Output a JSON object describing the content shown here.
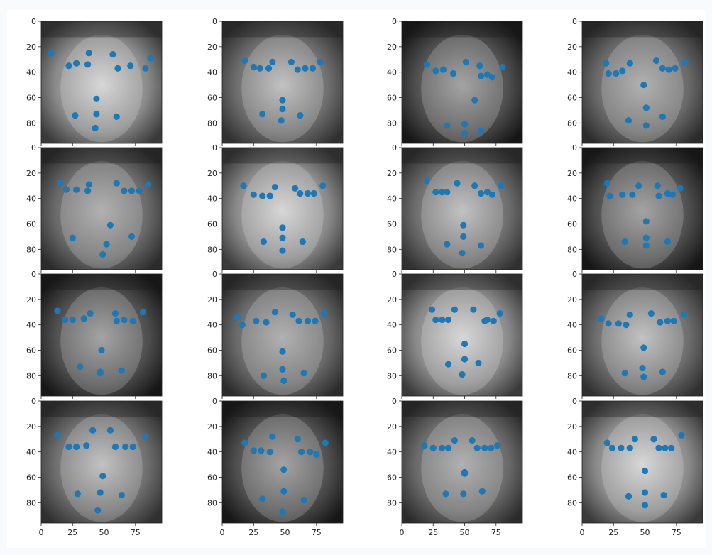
{
  "figure": {
    "background": "#ffffff",
    "page_background": "#f8fafd",
    "rows": 4,
    "cols": 4
  },
  "style": {
    "point_color": "#1f77b4",
    "axis_color": "#222222"
  },
  "axes": {
    "xlim": [
      0,
      96
    ],
    "ylim": [
      96,
      0
    ],
    "yticks": [
      0,
      20,
      40,
      60,
      80
    ],
    "xticks": [
      0,
      25,
      50,
      75
    ],
    "ytick_labels": [
      "0",
      "20",
      "40",
      "60",
      "80"
    ],
    "xtick_labels": [
      "0",
      "25",
      "50",
      "75"
    ]
  },
  "chart_data": [
    {
      "type": "scatter",
      "image": "face-photo",
      "points": [
        [
          8,
          25
        ],
        [
          22,
          35
        ],
        [
          28,
          33
        ],
        [
          37,
          34
        ],
        [
          38,
          25
        ],
        [
          57,
          26
        ],
        [
          61,
          37
        ],
        [
          71,
          35
        ],
        [
          83,
          37
        ],
        [
          87,
          29
        ],
        [
          44,
          61
        ],
        [
          27,
          74
        ],
        [
          44,
          73
        ],
        [
          60,
          75
        ],
        [
          43,
          84
        ]
      ]
    },
    {
      "type": "scatter",
      "image": "face-photo",
      "points": [
        [
          18,
          31
        ],
        [
          25,
          36
        ],
        [
          30,
          37
        ],
        [
          37,
          37
        ],
        [
          40,
          32
        ],
        [
          55,
          32
        ],
        [
          60,
          38
        ],
        [
          66,
          37
        ],
        [
          72,
          37
        ],
        [
          78,
          32
        ],
        [
          48,
          62
        ],
        [
          32,
          73
        ],
        [
          48,
          69
        ],
        [
          62,
          74
        ],
        [
          47,
          78
        ]
      ]
    },
    {
      "type": "scatter",
      "image": "face-photo",
      "points": [
        [
          20,
          34
        ],
        [
          27,
          39
        ],
        [
          33,
          38
        ],
        [
          41,
          41
        ],
        [
          51,
          32
        ],
        [
          62,
          35
        ],
        [
          63,
          43
        ],
        [
          68,
          42
        ],
        [
          72,
          44
        ],
        [
          80,
          36
        ],
        [
          58,
          62
        ],
        [
          36,
          82
        ],
        [
          50,
          81
        ],
        [
          63,
          86
        ],
        [
          50,
          88
        ]
      ]
    },
    {
      "type": "scatter",
      "image": "face-photo",
      "points": [
        [
          19,
          33
        ],
        [
          21,
          41
        ],
        [
          27,
          41
        ],
        [
          32,
          39
        ],
        [
          38,
          33
        ],
        [
          59,
          31
        ],
        [
          64,
          37
        ],
        [
          69,
          38
        ],
        [
          74,
          37
        ],
        [
          82,
          32
        ],
        [
          49,
          50
        ],
        [
          37,
          78
        ],
        [
          51,
          68
        ],
        [
          64,
          75
        ],
        [
          51,
          82
        ]
      ]
    },
    {
      "type": "scatter",
      "image": "face-photo",
      "points": [
        [
          15,
          28
        ],
        [
          20,
          33
        ],
        [
          28,
          33
        ],
        [
          37,
          34
        ],
        [
          38,
          29
        ],
        [
          60,
          28
        ],
        [
          66,
          34
        ],
        [
          72,
          34
        ],
        [
          78,
          34
        ],
        [
          85,
          29
        ],
        [
          55,
          61
        ],
        [
          25,
          71
        ],
        [
          52,
          76
        ],
        [
          72,
          70
        ],
        [
          49,
          84
        ]
      ]
    },
    {
      "type": "scatter",
      "image": "face-photo",
      "points": [
        [
          17,
          30
        ],
        [
          25,
          37
        ],
        [
          32,
          38
        ],
        [
          38,
          38
        ],
        [
          42,
          31
        ],
        [
          58,
          32
        ],
        [
          62,
          36
        ],
        [
          68,
          36
        ],
        [
          73,
          36
        ],
        [
          80,
          30
        ],
        [
          48,
          63
        ],
        [
          33,
          74
        ],
        [
          48,
          71
        ],
        [
          64,
          74
        ],
        [
          48,
          81
        ]
      ]
    },
    {
      "type": "scatter",
      "image": "face-photo",
      "points": [
        [
          20,
          26
        ],
        [
          27,
          35
        ],
        [
          32,
          35
        ],
        [
          36,
          35
        ],
        [
          44,
          28
        ],
        [
          58,
          30
        ],
        [
          63,
          36
        ],
        [
          68,
          35
        ],
        [
          72,
          37
        ],
        [
          79,
          30
        ],
        [
          49,
          61
        ],
        [
          36,
          76
        ],
        [
          49,
          70
        ],
        [
          63,
          77
        ],
        [
          48,
          83
        ]
      ]
    },
    {
      "type": "scatter",
      "image": "face-photo",
      "points": [
        [
          20,
          28
        ],
        [
          22,
          38
        ],
        [
          32,
          37
        ],
        [
          40,
          37
        ],
        [
          45,
          30
        ],
        [
          60,
          30
        ],
        [
          61,
          38
        ],
        [
          68,
          36
        ],
        [
          72,
          37
        ],
        [
          78,
          32
        ],
        [
          51,
          58
        ],
        [
          34,
          74
        ],
        [
          51,
          71
        ],
        [
          68,
          74
        ],
        [
          51,
          77
        ]
      ]
    },
    {
      "type": "scatter",
      "image": "face-photo",
      "points": [
        [
          13,
          29
        ],
        [
          19,
          36
        ],
        [
          25,
          36
        ],
        [
          34,
          35
        ],
        [
          39,
          31
        ],
        [
          59,
          31
        ],
        [
          60,
          37
        ],
        [
          66,
          36
        ],
        [
          73,
          37
        ],
        [
          81,
          30
        ],
        [
          48,
          60
        ],
        [
          31,
          73
        ],
        [
          47,
          78
        ],
        [
          64,
          76
        ],
        [
          47,
          77
        ]
      ]
    },
    {
      "type": "scatter",
      "image": "face-photo",
      "points": [
        [
          12,
          34
        ],
        [
          16,
          40
        ],
        [
          27,
          37
        ],
        [
          35,
          38
        ],
        [
          42,
          30
        ],
        [
          56,
          32
        ],
        [
          61,
          37
        ],
        [
          68,
          37
        ],
        [
          74,
          37
        ],
        [
          81,
          31
        ],
        [
          48,
          61
        ],
        [
          33,
          80
        ],
        [
          48,
          75
        ],
        [
          65,
          78
        ],
        [
          49,
          84
        ]
      ]
    },
    {
      "type": "scatter",
      "image": "face-photo",
      "points": [
        [
          24,
          28
        ],
        [
          27,
          36
        ],
        [
          32,
          36
        ],
        [
          37,
          36
        ],
        [
          42,
          28
        ],
        [
          57,
          28
        ],
        [
          66,
          37
        ],
        [
          68,
          36
        ],
        [
          73,
          37
        ],
        [
          78,
          31
        ],
        [
          50,
          55
        ],
        [
          37,
          71
        ],
        [
          50,
          67
        ],
        [
          61,
          70
        ],
        [
          48,
          79
        ]
      ]
    },
    {
      "type": "scatter",
      "image": "face-photo",
      "points": [
        [
          15,
          35
        ],
        [
          21,
          39
        ],
        [
          29,
          39
        ],
        [
          35,
          40
        ],
        [
          38,
          32
        ],
        [
          55,
          31
        ],
        [
          62,
          38
        ],
        [
          68,
          37
        ],
        [
          73,
          37
        ],
        [
          81,
          32
        ],
        [
          49,
          58
        ],
        [
          34,
          78
        ],
        [
          48,
          74
        ],
        [
          64,
          77
        ],
        [
          49,
          81
        ]
      ]
    },
    {
      "type": "scatter",
      "image": "face-photo",
      "points": [
        [
          13,
          27
        ],
        [
          22,
          36
        ],
        [
          28,
          36
        ],
        [
          36,
          35
        ],
        [
          41,
          23
        ],
        [
          55,
          23
        ],
        [
          59,
          36
        ],
        [
          67,
          36
        ],
        [
          73,
          36
        ],
        [
          83,
          28
        ],
        [
          49,
          59
        ],
        [
          29,
          73
        ],
        [
          47,
          72
        ],
        [
          64,
          74
        ],
        [
          45,
          86
        ]
      ]
    },
    {
      "type": "scatter",
      "image": "face-photo",
      "points": [
        [
          18,
          33
        ],
        [
          25,
          39
        ],
        [
          31,
          39
        ],
        [
          38,
          40
        ],
        [
          40,
          28
        ],
        [
          60,
          30
        ],
        [
          63,
          40
        ],
        [
          70,
          40
        ],
        [
          75,
          42
        ],
        [
          82,
          33
        ],
        [
          49,
          54
        ],
        [
          32,
          77
        ],
        [
          49,
          71
        ],
        [
          65,
          78
        ],
        [
          48,
          87
        ]
      ]
    },
    {
      "type": "scatter",
      "image": "face-photo",
      "points": [
        [
          18,
          35
        ],
        [
          25,
          37
        ],
        [
          32,
          37
        ],
        [
          37,
          37
        ],
        [
          42,
          31
        ],
        [
          56,
          31
        ],
        [
          60,
          37
        ],
        [
          66,
          37
        ],
        [
          71,
          37
        ],
        [
          76,
          35
        ],
        [
          50,
          57
        ],
        [
          35,
          73
        ],
        [
          49,
          73
        ],
        [
          64,
          71
        ],
        [
          50,
          56
        ]
      ]
    },
    {
      "type": "scatter",
      "image": "face-photo",
      "points": [
        [
          20,
          33
        ],
        [
          24,
          37
        ],
        [
          31,
          37
        ],
        [
          38,
          37
        ],
        [
          42,
          30
        ],
        [
          57,
          30
        ],
        [
          61,
          37
        ],
        [
          66,
          37
        ],
        [
          71,
          37
        ],
        [
          79,
          27
        ],
        [
          50,
          55
        ],
        [
          37,
          75
        ],
        [
          50,
          72
        ],
        [
          65,
          74
        ],
        [
          50,
          82
        ]
      ]
    }
  ]
}
